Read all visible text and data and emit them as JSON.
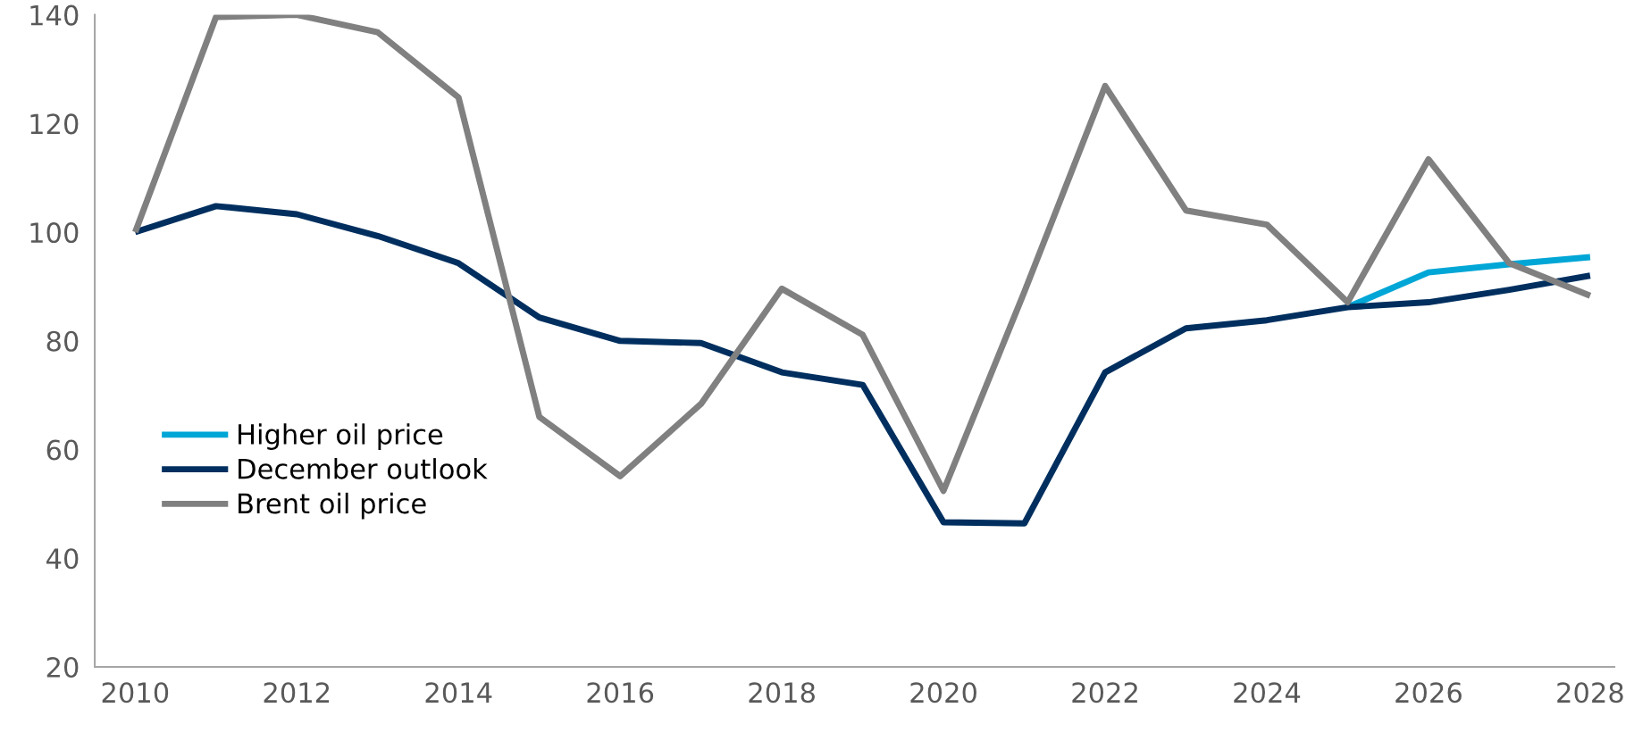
{
  "chart_data": {
    "type": "line",
    "x": [
      2010,
      2011,
      2012,
      2013,
      2014,
      2015,
      2016,
      2017,
      2018,
      2019,
      2020,
      2021,
      2022,
      2023,
      2024,
      2025,
      2026,
      2027,
      2028
    ],
    "series": [
      {
        "name": "Higher oil price",
        "color": "#00a6d6",
        "values": [
          null,
          null,
          null,
          null,
          null,
          null,
          null,
          null,
          null,
          null,
          null,
          null,
          null,
          null,
          null,
          86.2,
          92.6,
          94.1,
          95.4
        ]
      },
      {
        "name": "December outlook",
        "color": "#002f5f",
        "values": [
          100,
          104.8,
          103.3,
          99.3,
          94.3,
          84.3,
          80,
          79.6,
          74.2,
          71.9,
          46.6,
          46.4,
          74.2,
          82.3,
          83.8,
          86.2,
          87.1,
          89.4,
          92
        ]
      },
      {
        "name": "Brent oil price",
        "color": "#808080",
        "values": [
          100,
          139.6,
          140,
          136.8,
          124.8,
          66,
          55.1,
          68.4,
          89.6,
          81.1,
          52.4,
          89,
          126.9,
          104,
          101.4,
          87.1,
          113.4,
          94.3,
          88.3
        ]
      }
    ],
    "xlim": [
      2009.5,
      2028.3
    ],
    "xticks": [
      2010,
      2012,
      2014,
      2016,
      2018,
      2020,
      2022,
      2024,
      2026,
      2028
    ],
    "ylim": [
      20,
      140
    ],
    "yticks": [
      20,
      40,
      60,
      80,
      100,
      120,
      140
    ],
    "grid": false,
    "legend": "center left",
    "marker": "none",
    "line_style": "solid"
  }
}
